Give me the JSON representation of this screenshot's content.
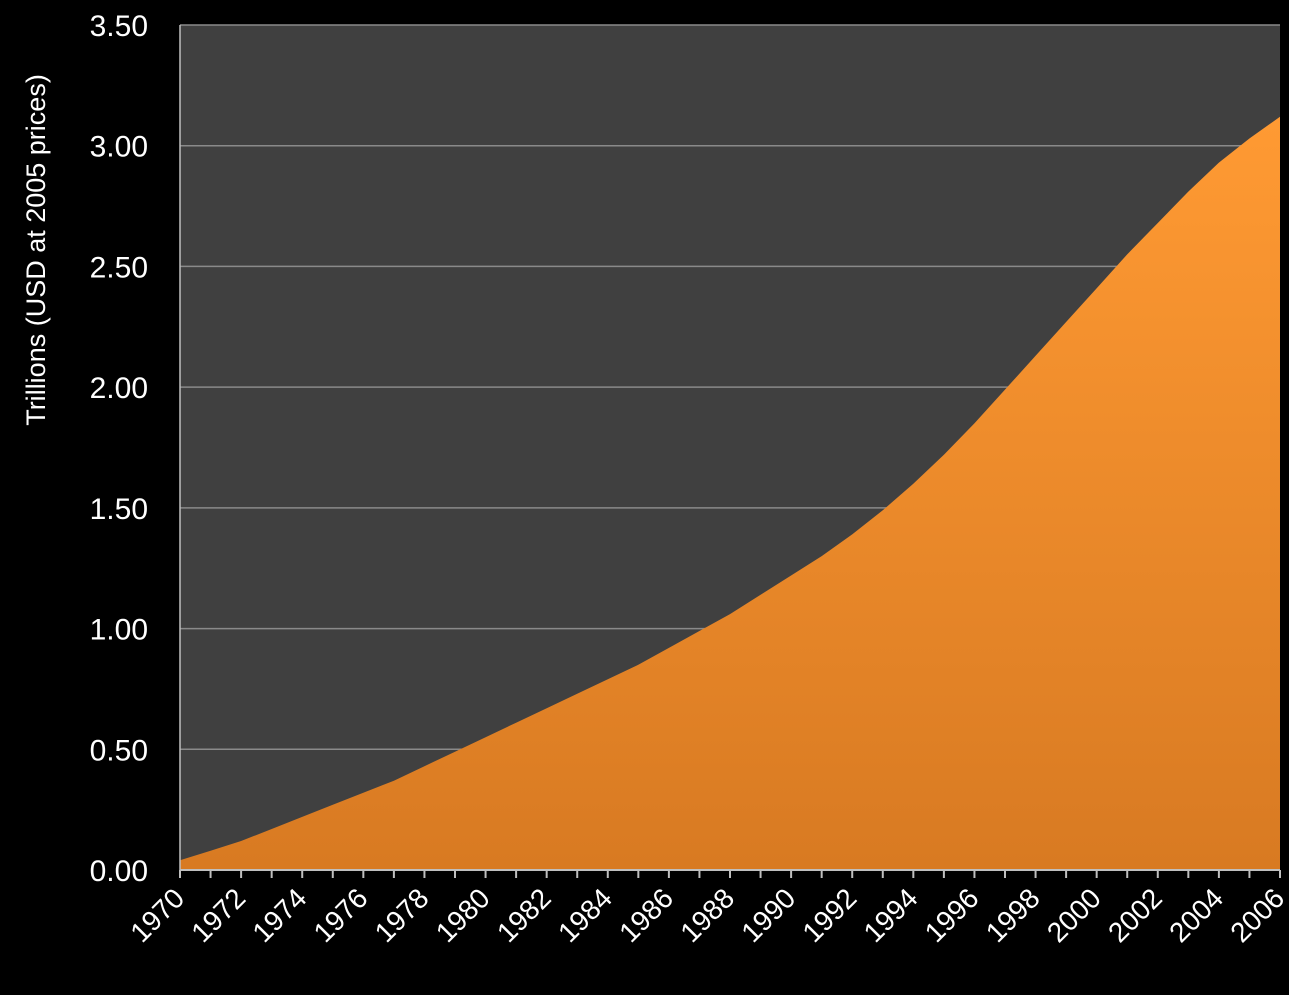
{
  "colors": {
    "background": "#000000",
    "plot_area": "#404040",
    "gridline": "#8a8a8a",
    "area_top": "#ff9a33",
    "area_bottom": "#d87a22",
    "text": "#ffffff"
  },
  "chart_data": {
    "type": "area",
    "title": "",
    "xlabel": "",
    "ylabel": "Trillions (USD at 2005 prices)",
    "ylim": [
      0,
      3.5
    ],
    "xlim": [
      1970,
      2006
    ],
    "grid": true,
    "legend": "none",
    "y_ticks": [
      "0.00",
      "0.50",
      "1.00",
      "1.50",
      "2.00",
      "2.50",
      "3.00",
      "3.50"
    ],
    "x_ticks": [
      "1970",
      "1972",
      "1974",
      "1976",
      "1978",
      "1980",
      "1982",
      "1984",
      "1986",
      "1988",
      "1990",
      "1992",
      "1994",
      "1996",
      "1998",
      "2000",
      "2002",
      "2004",
      "2006"
    ],
    "x": [
      1970,
      1971,
      1972,
      1973,
      1974,
      1975,
      1976,
      1977,
      1978,
      1979,
      1980,
      1981,
      1982,
      1983,
      1984,
      1985,
      1986,
      1987,
      1988,
      1989,
      1990,
      1991,
      1992,
      1993,
      1994,
      1995,
      1996,
      1997,
      1998,
      1999,
      2000,
      2001,
      2002,
      2003,
      2004,
      2005,
      2006
    ],
    "values": [
      0.04,
      0.08,
      0.12,
      0.17,
      0.22,
      0.27,
      0.32,
      0.37,
      0.43,
      0.49,
      0.55,
      0.61,
      0.67,
      0.73,
      0.79,
      0.85,
      0.92,
      0.99,
      1.06,
      1.14,
      1.22,
      1.3,
      1.39,
      1.49,
      1.6,
      1.72,
      1.85,
      1.99,
      2.13,
      2.27,
      2.41,
      2.55,
      2.68,
      2.81,
      2.93,
      3.03,
      3.12
    ]
  }
}
